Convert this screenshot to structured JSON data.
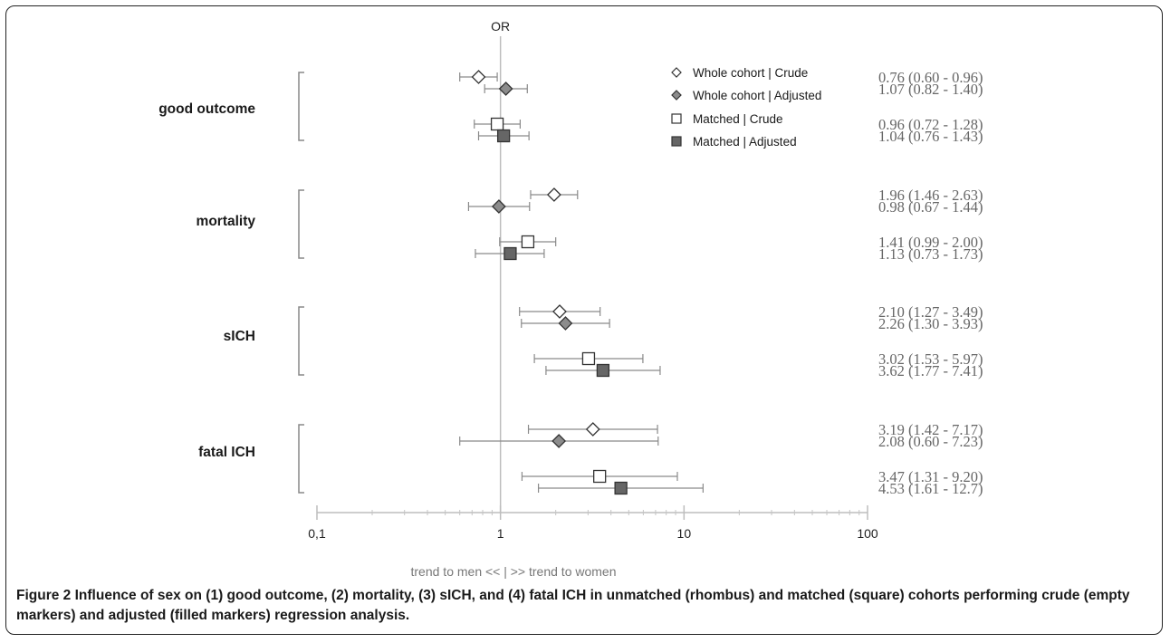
{
  "caption": {
    "label": "Figure 2",
    "text": "Influence of sex on (1) good outcome, (2) mortality, (3) sICH, and (4) fatal ICH in unmatched (rhombus) and matched (square) cohorts performing crude (empty markers) and adjusted (filled markers) regression analysis."
  },
  "chart_data": {
    "type": "scatter",
    "title": "OR",
    "xlabel": "trend to men << | >> trend to women",
    "xscale": "log",
    "xlim": [
      0.1,
      100
    ],
    "x_ticks": [
      {
        "value": 0.1,
        "label": "0,1"
      },
      {
        "value": 1,
        "label": "1"
      },
      {
        "value": 10,
        "label": "10"
      },
      {
        "value": 100,
        "label": "100"
      }
    ],
    "reference_line": 1,
    "grid": false,
    "legend_position": "top-right",
    "categories": [
      "good outcome",
      "mortality",
      "sICH",
      "fatal ICH"
    ],
    "series": [
      {
        "name": "Whole cohort | Crude",
        "marker": "diamond",
        "filled": false,
        "color": "#ffffff",
        "points": [
          {
            "or": 0.76,
            "lo": 0.6,
            "hi": 0.96,
            "label": "0.76 (0.60 - 0.96)"
          },
          {
            "or": 1.96,
            "lo": 1.46,
            "hi": 2.63,
            "label": "1.96 (1.46 - 2.63)"
          },
          {
            "or": 2.1,
            "lo": 1.27,
            "hi": 3.49,
            "label": "2.10 (1.27 - 3.49)"
          },
          {
            "or": 3.19,
            "lo": 1.42,
            "hi": 7.17,
            "label": "3.19 (1.42 - 7.17)"
          }
        ]
      },
      {
        "name": "Whole cohort | Adjusted",
        "marker": "diamond",
        "filled": true,
        "color": "#8c8c8c",
        "points": [
          {
            "or": 1.07,
            "lo": 0.82,
            "hi": 1.4,
            "label": "1.07 (0.82 - 1.40)"
          },
          {
            "or": 0.98,
            "lo": 0.67,
            "hi": 1.44,
            "label": "0.98 (0.67 - 1.44)"
          },
          {
            "or": 2.26,
            "lo": 1.3,
            "hi": 3.93,
            "label": "2.26 (1.30 - 3.93)"
          },
          {
            "or": 2.08,
            "lo": 0.6,
            "hi": 7.23,
            "label": "2.08 (0.60 - 7.23)"
          }
        ]
      },
      {
        "name": "Matched | Crude",
        "marker": "square",
        "filled": false,
        "color": "#ffffff",
        "points": [
          {
            "or": 0.96,
            "lo": 0.72,
            "hi": 1.28,
            "label": "0.96 (0.72 - 1.28)"
          },
          {
            "or": 1.41,
            "lo": 0.99,
            "hi": 2.0,
            "label": "1.41 (0.99 - 2.00)"
          },
          {
            "or": 3.02,
            "lo": 1.53,
            "hi": 5.97,
            "label": "3.02 (1.53 - 5.97)"
          },
          {
            "or": 3.47,
            "lo": 1.31,
            "hi": 9.2,
            "label": "3.47 (1.31 - 9.20)"
          }
        ]
      },
      {
        "name": "Matched | Adjusted",
        "marker": "square",
        "filled": true,
        "color": "#666666",
        "points": [
          {
            "or": 1.04,
            "lo": 0.76,
            "hi": 1.43,
            "label": "1.04 (0.76 - 1.43)"
          },
          {
            "or": 1.13,
            "lo": 0.73,
            "hi": 1.73,
            "label": "1.13 (0.73 - 1.73)"
          },
          {
            "or": 3.62,
            "lo": 1.77,
            "hi": 7.41,
            "label": "3.62 (1.77 - 7.41)"
          },
          {
            "or": 4.53,
            "lo": 1.61,
            "hi": 12.7,
            "label": "4.53 (1.61 - 12.7)"
          }
        ]
      }
    ]
  }
}
